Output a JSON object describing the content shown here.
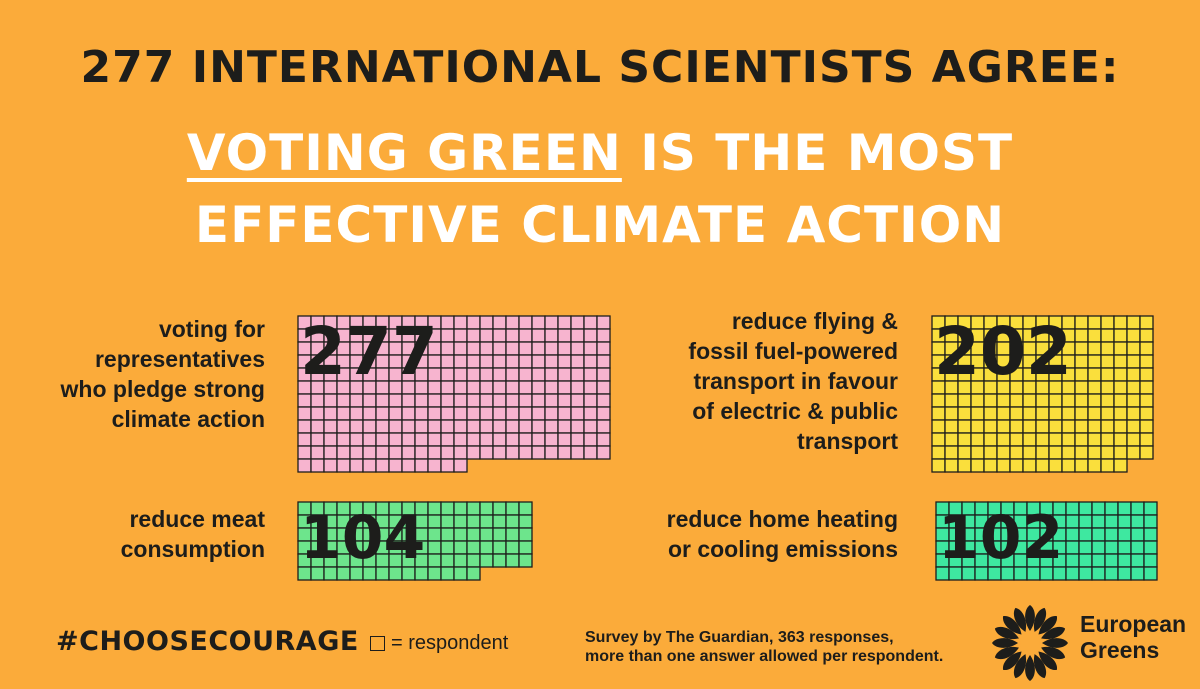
{
  "headline": "277 INTERNATIONAL SCIENTISTS AGREE:",
  "subheadline": {
    "underlined": "VOTING GREEN",
    "rest_line1": " IS THE MOST",
    "line2": "EFFECTIVE CLIMATE ACTION"
  },
  "chart_data": {
    "type": "waffle",
    "unit": "respondent",
    "items": [
      {
        "label": "voting for representatives who pledge strong climate action",
        "label_lines": [
          "voting for",
          "representatives",
          "who pledge strong",
          "climate action"
        ],
        "value": 277,
        "display": "277",
        "color": "#f7b4cf"
      },
      {
        "label": "reduce flying & fossil fuel-powered transport in favour of electric & public transport",
        "label_lines": [
          "reduce flying &",
          "fossil fuel-powered",
          "transport in favour",
          "of electric & public",
          "transport"
        ],
        "value": 202,
        "display": "202",
        "color": "#fadf3c"
      },
      {
        "label": "reduce meat consumption",
        "label_lines": [
          "reduce meat",
          "consumption"
        ],
        "value": 104,
        "display": "104",
        "color": "#6de58c"
      },
      {
        "label": "reduce home heating or cooling emissions",
        "label_lines": [
          "reduce home heating",
          "or cooling emissions"
        ],
        "value": 102,
        "display": "102",
        "color": "#3ee8a0"
      }
    ]
  },
  "footer": {
    "hashtag": "#CHOOSECOURAGE",
    "legend": "= respondent",
    "source_line1": "Survey by The Guardian, 363 responses,",
    "source_line2": "more than one answer allowed per respondent.",
    "logo_line1": "European",
    "logo_line2": "Greens"
  },
  "colors": {
    "background": "#fbab3a",
    "ink": "#1d1d1b"
  }
}
